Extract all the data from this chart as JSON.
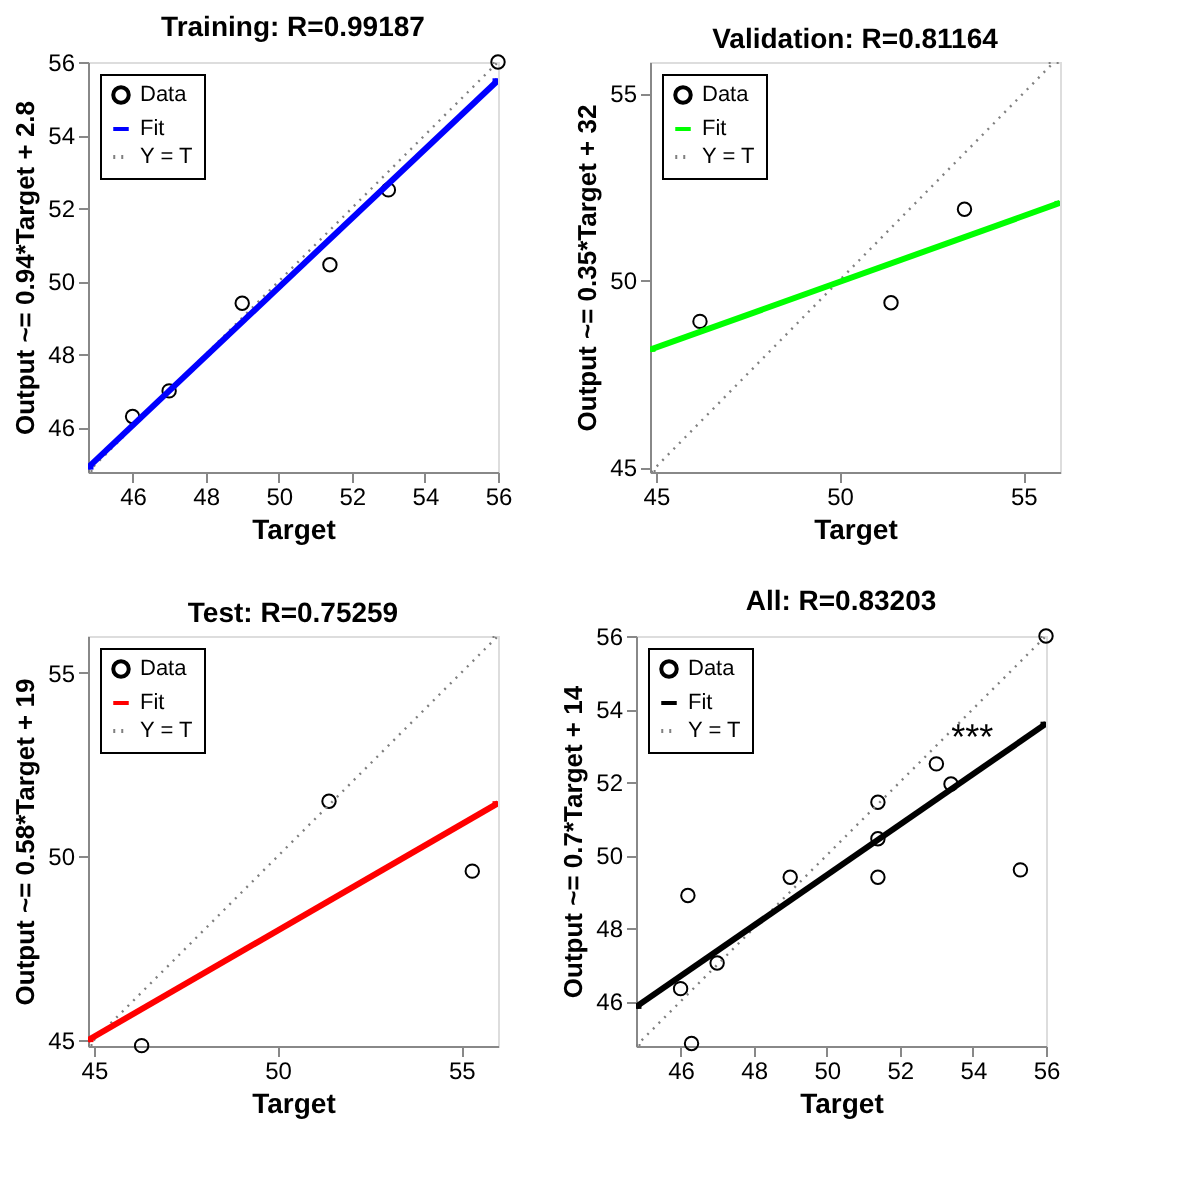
{
  "chart_data": [
    {
      "type": "scatter",
      "title": "Training: R=0.99187",
      "xlabel": "Target",
      "ylabel": "Output ~= 0.94*Target + 2.8",
      "xlim": [
        44.78,
        56
      ],
      "ylim": [
        44.78,
        56
      ],
      "xticks": [
        46,
        48,
        50,
        52,
        54,
        56
      ],
      "yticks": [
        46,
        48,
        50,
        52,
        54,
        56
      ],
      "grid": false,
      "legend": "top left",
      "series": [
        {
          "name": "Data",
          "type": "scatter",
          "marker": "circle",
          "color": "#000000",
          "x": [
            46,
            47,
            49,
            51.4,
            53,
            56
          ],
          "values": [
            46.3,
            47.0,
            49.4,
            50.45,
            52.5,
            56
          ]
        },
        {
          "name": "Fit",
          "type": "line",
          "color": "#0000ff",
          "line_style": "solid",
          "x": [
            44.78,
            56
          ],
          "values": [
            44.9,
            55.5
          ]
        },
        {
          "name": "Y = T",
          "type": "line",
          "color": "#808080",
          "line_style": "dotted",
          "x": [
            44.78,
            56
          ],
          "values": [
            44.78,
            56
          ]
        }
      ]
    },
    {
      "type": "scatter",
      "title": "Validation: R=0.81164",
      "xlabel": "Target",
      "ylabel": "Output ~= 0.35*Target + 32",
      "xlim": [
        44.84,
        56
      ],
      "ylim": [
        44.87,
        55.84
      ],
      "xticks": [
        45,
        50,
        55
      ],
      "yticks": [
        45,
        50,
        55
      ],
      "grid": false,
      "legend": "top left",
      "series": [
        {
          "name": "Data",
          "type": "scatter",
          "marker": "circle",
          "color": "#000000",
          "x": [
            46.2,
            51.4,
            53.4
          ],
          "values": [
            48.9,
            49.4,
            51.9
          ]
        },
        {
          "name": "Fit",
          "type": "line",
          "color": "#00ff00",
          "line_style": "solid",
          "x": [
            44.84,
            56
          ],
          "values": [
            48.14,
            52.07
          ]
        },
        {
          "name": "Y = T",
          "type": "line",
          "color": "#808080",
          "line_style": "dotted",
          "x": [
            44.87,
            55.84
          ],
          "values": [
            44.87,
            55.84
          ]
        }
      ]
    },
    {
      "type": "scatter",
      "title": "Test: R=0.75259",
      "xlabel": "Target",
      "ylabel": "Output ~= 0.58*Target + 19",
      "xlim": [
        44.84,
        56
      ],
      "ylim": [
        44.84,
        56
      ],
      "xticks": [
        45,
        50,
        55
      ],
      "yticks": [
        45,
        50,
        55
      ],
      "grid": false,
      "legend": "top left",
      "series": [
        {
          "name": "Data",
          "type": "scatter",
          "marker": "circle",
          "color": "#000000",
          "x": [
            46.3,
            51.4,
            55.3
          ],
          "values": [
            44.85,
            51.5,
            49.6
          ]
        },
        {
          "name": "Fit",
          "type": "line",
          "color": "#ff0000",
          "line_style": "solid",
          "x": [
            44.84,
            56
          ],
          "values": [
            45.0,
            51.45
          ]
        },
        {
          "name": "Y = T",
          "type": "line",
          "color": "#808080",
          "line_style": "dotted",
          "x": [
            44.84,
            56
          ],
          "values": [
            44.84,
            56
          ]
        }
      ]
    },
    {
      "type": "scatter",
      "title": "All: R=0.83203",
      "xlabel": "Target",
      "ylabel": "Output ~= 0.7*Target + 14",
      "xlim": [
        44.78,
        56
      ],
      "ylim": [
        44.78,
        56
      ],
      "xticks": [
        46,
        48,
        50,
        52,
        54,
        56
      ],
      "yticks": [
        46,
        48,
        50,
        52,
        54,
        56
      ],
      "grid": false,
      "legend": "top left",
      "annotations": [
        "***"
      ],
      "series": [
        {
          "name": "Data",
          "type": "scatter",
          "marker": "circle",
          "color": "#000000",
          "x": [
            46,
            46.2,
            46.3,
            47,
            49,
            51.4,
            51.4,
            51.4,
            53,
            53.4,
            55.3,
            56
          ],
          "values": [
            46.35,
            48.9,
            44.85,
            47.05,
            49.4,
            51.45,
            50.45,
            49.4,
            52.5,
            51.95,
            49.6,
            56
          ]
        },
        {
          "name": "Fit",
          "type": "line",
          "color": "#000000",
          "line_style": "solid",
          "x": [
            44.78,
            56
          ],
          "values": [
            45.85,
            53.6
          ]
        },
        {
          "name": "Y = T",
          "type": "line",
          "color": "#808080",
          "line_style": "dotted",
          "x": [
            44.78,
            56
          ],
          "values": [
            44.78,
            56
          ]
        }
      ]
    }
  ]
}
